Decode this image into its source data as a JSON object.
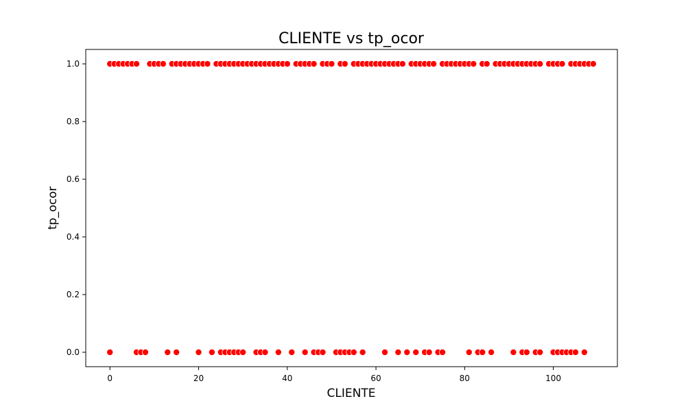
{
  "chart_data": {
    "type": "scatter",
    "title": "CLIENTE vs tp_ocor",
    "xlabel": "CLIENTE",
    "ylabel": "tp_ocor",
    "xlim": [
      -5.45,
      114.45
    ],
    "ylim": [
      -0.05,
      1.05
    ],
    "x_ticks": [
      0,
      20,
      40,
      60,
      80,
      100
    ],
    "y_ticks": [
      0.0,
      0.2,
      0.4,
      0.6,
      0.8,
      1.0
    ],
    "y_tick_labels": [
      "0.0",
      "0.2",
      "0.4",
      "0.6",
      "0.8",
      "1.0"
    ],
    "grid": false,
    "marker_color": "#ff0000",
    "marker_edge_color": "#ffffff",
    "series": [
      {
        "points": [
          {
            "x": 0,
            "y": 1
          },
          {
            "x": 1,
            "y": 1
          },
          {
            "x": 2,
            "y": 1
          },
          {
            "x": 3,
            "y": 1
          },
          {
            "x": 4,
            "y": 1
          },
          {
            "x": 5,
            "y": 1
          },
          {
            "x": 6,
            "y": 1
          },
          {
            "x": 9,
            "y": 1
          },
          {
            "x": 10,
            "y": 1
          },
          {
            "x": 11,
            "y": 1
          },
          {
            "x": 12,
            "y": 1
          },
          {
            "x": 14,
            "y": 1
          },
          {
            "x": 15,
            "y": 1
          },
          {
            "x": 16,
            "y": 1
          },
          {
            "x": 17,
            "y": 1
          },
          {
            "x": 18,
            "y": 1
          },
          {
            "x": 19,
            "y": 1
          },
          {
            "x": 20,
            "y": 1
          },
          {
            "x": 21,
            "y": 1
          },
          {
            "x": 22,
            "y": 1
          },
          {
            "x": 24,
            "y": 1
          },
          {
            "x": 25,
            "y": 1
          },
          {
            "x": 26,
            "y": 1
          },
          {
            "x": 27,
            "y": 1
          },
          {
            "x": 28,
            "y": 1
          },
          {
            "x": 29,
            "y": 1
          },
          {
            "x": 30,
            "y": 1
          },
          {
            "x": 31,
            "y": 1
          },
          {
            "x": 32,
            "y": 1
          },
          {
            "x": 33,
            "y": 1
          },
          {
            "x": 34,
            "y": 1
          },
          {
            "x": 35,
            "y": 1
          },
          {
            "x": 36,
            "y": 1
          },
          {
            "x": 37,
            "y": 1
          },
          {
            "x": 38,
            "y": 1
          },
          {
            "x": 39,
            "y": 1
          },
          {
            "x": 40,
            "y": 1
          },
          {
            "x": 42,
            "y": 1
          },
          {
            "x": 43,
            "y": 1
          },
          {
            "x": 44,
            "y": 1
          },
          {
            "x": 45,
            "y": 1
          },
          {
            "x": 46,
            "y": 1
          },
          {
            "x": 48,
            "y": 1
          },
          {
            "x": 49,
            "y": 1
          },
          {
            "x": 50,
            "y": 1
          },
          {
            "x": 52,
            "y": 1
          },
          {
            "x": 53,
            "y": 1
          },
          {
            "x": 55,
            "y": 1
          },
          {
            "x": 56,
            "y": 1
          },
          {
            "x": 57,
            "y": 1
          },
          {
            "x": 58,
            "y": 1
          },
          {
            "x": 59,
            "y": 1
          },
          {
            "x": 60,
            "y": 1
          },
          {
            "x": 61,
            "y": 1
          },
          {
            "x": 62,
            "y": 1
          },
          {
            "x": 63,
            "y": 1
          },
          {
            "x": 64,
            "y": 1
          },
          {
            "x": 65,
            "y": 1
          },
          {
            "x": 66,
            "y": 1
          },
          {
            "x": 68,
            "y": 1
          },
          {
            "x": 69,
            "y": 1
          },
          {
            "x": 70,
            "y": 1
          },
          {
            "x": 71,
            "y": 1
          },
          {
            "x": 72,
            "y": 1
          },
          {
            "x": 73,
            "y": 1
          },
          {
            "x": 75,
            "y": 1
          },
          {
            "x": 76,
            "y": 1
          },
          {
            "x": 77,
            "y": 1
          },
          {
            "x": 78,
            "y": 1
          },
          {
            "x": 79,
            "y": 1
          },
          {
            "x": 80,
            "y": 1
          },
          {
            "x": 81,
            "y": 1
          },
          {
            "x": 82,
            "y": 1
          },
          {
            "x": 84,
            "y": 1
          },
          {
            "x": 85,
            "y": 1
          },
          {
            "x": 87,
            "y": 1
          },
          {
            "x": 88,
            "y": 1
          },
          {
            "x": 89,
            "y": 1
          },
          {
            "x": 90,
            "y": 1
          },
          {
            "x": 91,
            "y": 1
          },
          {
            "x": 92,
            "y": 1
          },
          {
            "x": 93,
            "y": 1
          },
          {
            "x": 94,
            "y": 1
          },
          {
            "x": 95,
            "y": 1
          },
          {
            "x": 96,
            "y": 1
          },
          {
            "x": 97,
            "y": 1
          },
          {
            "x": 99,
            "y": 1
          },
          {
            "x": 100,
            "y": 1
          },
          {
            "x": 101,
            "y": 1
          },
          {
            "x": 102,
            "y": 1
          },
          {
            "x": 104,
            "y": 1
          },
          {
            "x": 105,
            "y": 1
          },
          {
            "x": 106,
            "y": 1
          },
          {
            "x": 107,
            "y": 1
          },
          {
            "x": 108,
            "y": 1
          },
          {
            "x": 109,
            "y": 1
          },
          {
            "x": 0,
            "y": 0
          },
          {
            "x": 6,
            "y": 0
          },
          {
            "x": 7,
            "y": 0
          },
          {
            "x": 8,
            "y": 0
          },
          {
            "x": 13,
            "y": 0
          },
          {
            "x": 15,
            "y": 0
          },
          {
            "x": 20,
            "y": 0
          },
          {
            "x": 23,
            "y": 0
          },
          {
            "x": 25,
            "y": 0
          },
          {
            "x": 26,
            "y": 0
          },
          {
            "x": 27,
            "y": 0
          },
          {
            "x": 28,
            "y": 0
          },
          {
            "x": 29,
            "y": 0
          },
          {
            "x": 30,
            "y": 0
          },
          {
            "x": 33,
            "y": 0
          },
          {
            "x": 34,
            "y": 0
          },
          {
            "x": 35,
            "y": 0
          },
          {
            "x": 38,
            "y": 0
          },
          {
            "x": 41,
            "y": 0
          },
          {
            "x": 44,
            "y": 0
          },
          {
            "x": 46,
            "y": 0
          },
          {
            "x": 47,
            "y": 0
          },
          {
            "x": 48,
            "y": 0
          },
          {
            "x": 51,
            "y": 0
          },
          {
            "x": 52,
            "y": 0
          },
          {
            "x": 53,
            "y": 0
          },
          {
            "x": 54,
            "y": 0
          },
          {
            "x": 55,
            "y": 0
          },
          {
            "x": 57,
            "y": 0
          },
          {
            "x": 62,
            "y": 0
          },
          {
            "x": 65,
            "y": 0
          },
          {
            "x": 67,
            "y": 0
          },
          {
            "x": 69,
            "y": 0
          },
          {
            "x": 71,
            "y": 0
          },
          {
            "x": 72,
            "y": 0
          },
          {
            "x": 74,
            "y": 0
          },
          {
            "x": 75,
            "y": 0
          },
          {
            "x": 81,
            "y": 0
          },
          {
            "x": 83,
            "y": 0
          },
          {
            "x": 84,
            "y": 0
          },
          {
            "x": 86,
            "y": 0
          },
          {
            "x": 91,
            "y": 0
          },
          {
            "x": 93,
            "y": 0
          },
          {
            "x": 94,
            "y": 0
          },
          {
            "x": 96,
            "y": 0
          },
          {
            "x": 97,
            "y": 0
          },
          {
            "x": 100,
            "y": 0
          },
          {
            "x": 101,
            "y": 0
          },
          {
            "x": 102,
            "y": 0
          },
          {
            "x": 103,
            "y": 0
          },
          {
            "x": 104,
            "y": 0
          },
          {
            "x": 105,
            "y": 0
          },
          {
            "x": 107,
            "y": 0
          }
        ]
      }
    ]
  }
}
